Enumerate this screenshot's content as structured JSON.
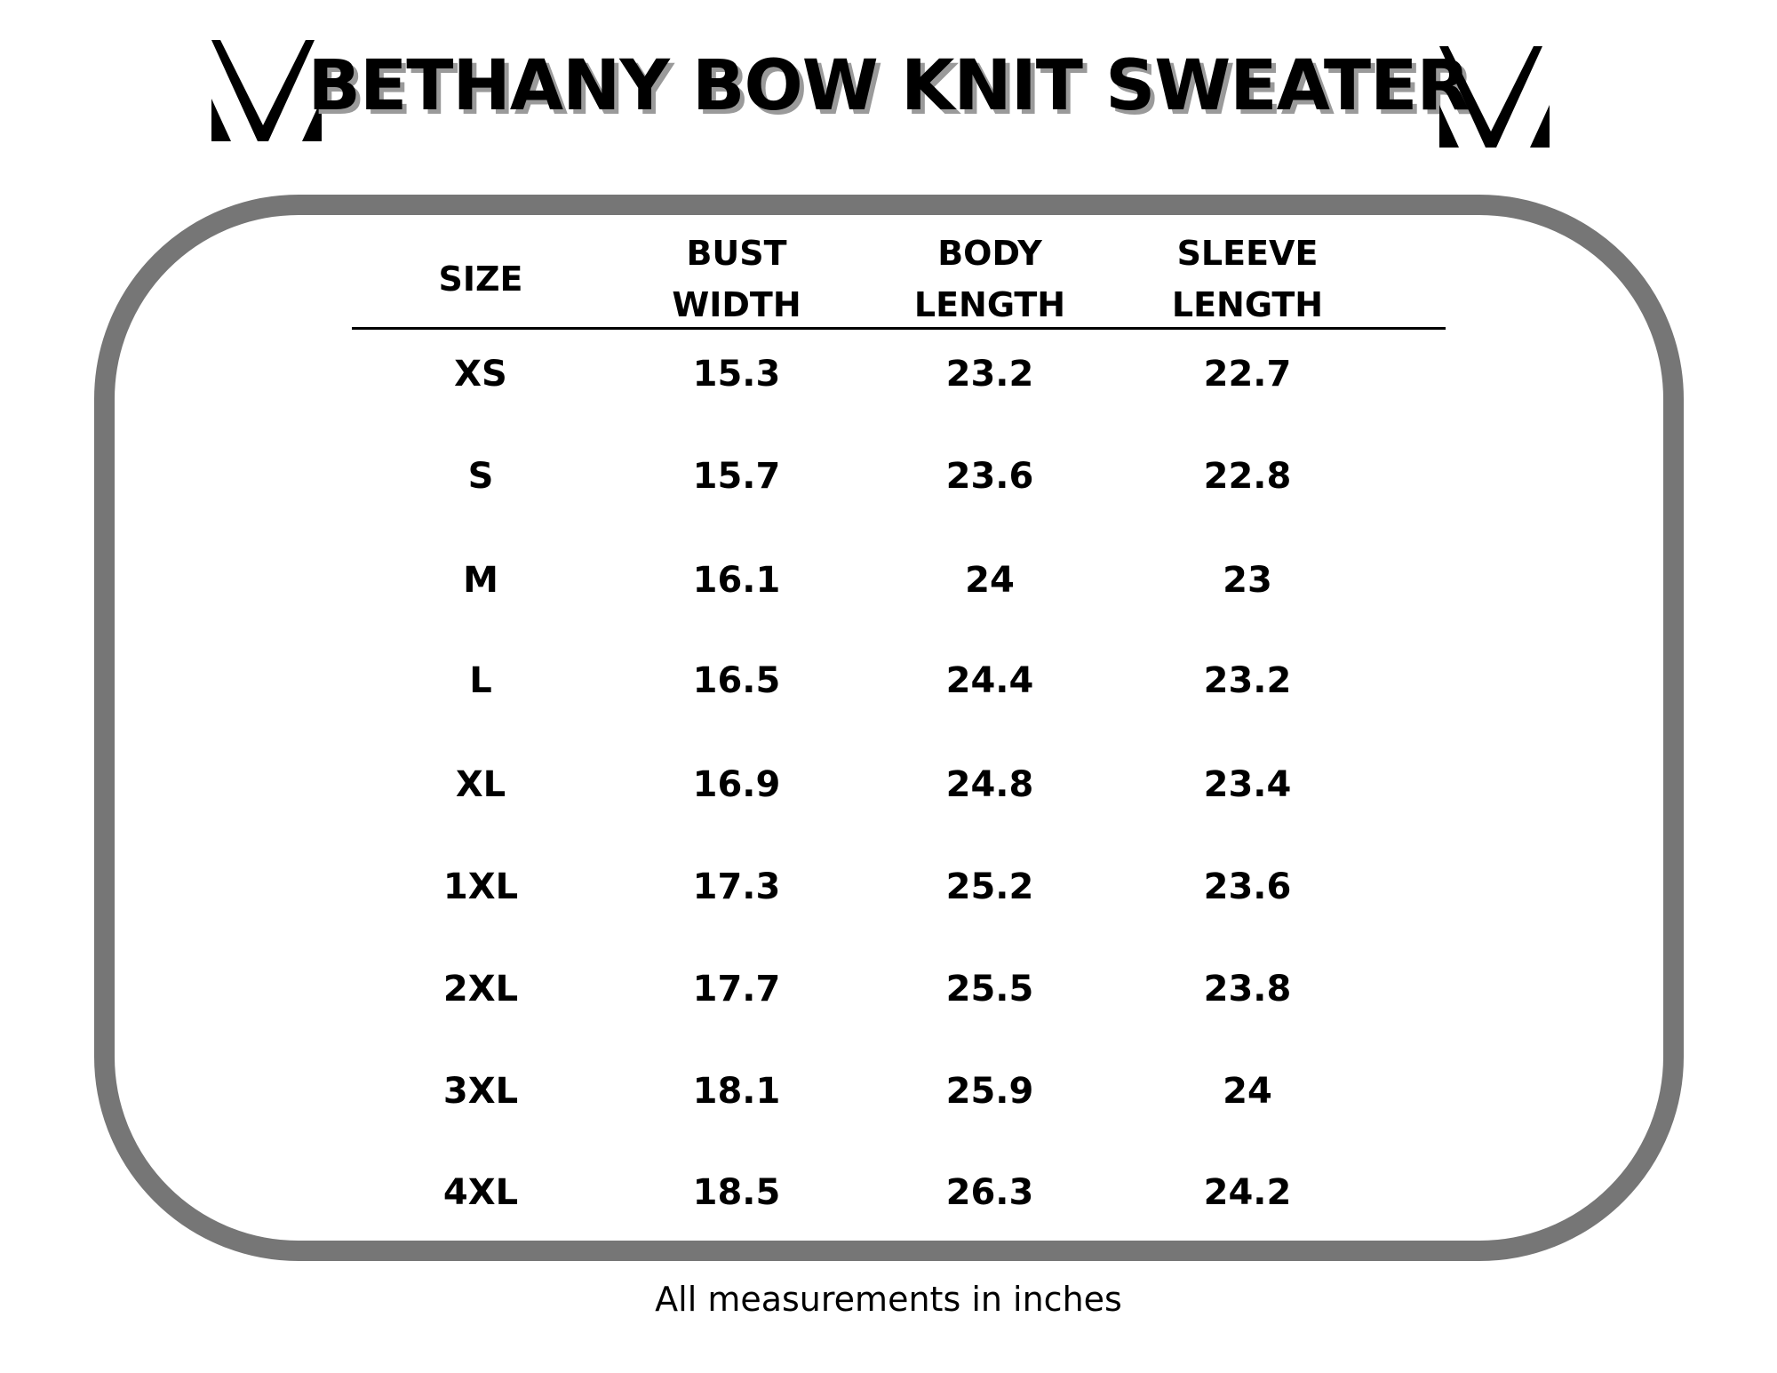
{
  "title": "BETHANY BOW KNIT SWEATER",
  "logo_icon": "v-monogram-icon",
  "table": {
    "headers": [
      [
        "SIZE"
      ],
      [
        "BUST",
        "WIDTH"
      ],
      [
        "BODY",
        "LENGTH"
      ],
      [
        "SLEEVE",
        "LENGTH"
      ]
    ],
    "rows": [
      [
        "XS",
        "15.3",
        "23.2",
        "22.7"
      ],
      [
        "S",
        "15.7",
        "23.6",
        "22.8"
      ],
      [
        "M",
        "16.1",
        "24",
        "23"
      ],
      [
        "L",
        "16.5",
        "24.4",
        "23.2"
      ],
      [
        "XL",
        "16.9",
        "24.8",
        "23.4"
      ],
      [
        "1XL",
        "17.3",
        "25.2",
        "23.6"
      ],
      [
        "2XL",
        "17.7",
        "25.5",
        "23.8"
      ],
      [
        "3XL",
        "18.1",
        "25.9",
        "24"
      ],
      [
        "4XL",
        "18.5",
        "26.3",
        "24.2"
      ]
    ]
  },
  "footer": "All measurements in inches",
  "colors": {
    "frame": "#767676",
    "text": "#000000",
    "title_shadow": "#9a9a9a"
  }
}
